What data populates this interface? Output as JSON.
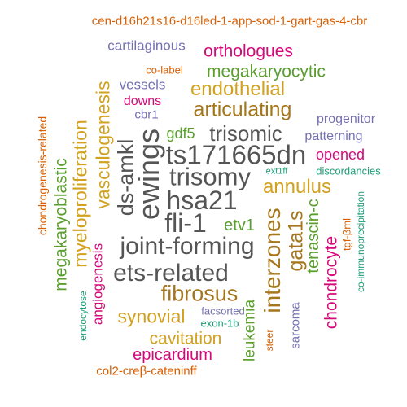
{
  "colors": {
    "background": "#ffffff",
    "gray": "#555555",
    "gold": "#d1a11f",
    "green": "#5a9e2d",
    "magenta": "#d6087a",
    "purple": "#7570b3",
    "orange": "#d95f02",
    "brown": "#a6761d",
    "teal": "#1b9e77"
  },
  "words": [
    {
      "text": "cen-d16h21s16-d16led-1-app-sod-1-gart-gas-4-cbr",
      "color": "#d95f02"
    },
    {
      "text": "cartilaginous",
      "color": "#7570b3"
    },
    {
      "text": "orthologues",
      "color": "#d6087a"
    },
    {
      "text": "co-label",
      "color": "#d95f02"
    },
    {
      "text": "megakaryocytic",
      "color": "#5a9e2d"
    },
    {
      "text": "vessels",
      "color": "#7570b3"
    },
    {
      "text": "endothelial",
      "color": "#d1a11f"
    },
    {
      "text": "downs",
      "color": "#d6087a"
    },
    {
      "text": "articulating",
      "color": "#a6761d"
    },
    {
      "text": "cbr1",
      "color": "#7570b3"
    },
    {
      "text": "progenitor",
      "color": "#7570b3"
    },
    {
      "text": "gdf5",
      "color": "#5a9e2d"
    },
    {
      "text": "trisomic",
      "color": "#555555"
    },
    {
      "text": "patterning",
      "color": "#7570b3"
    },
    {
      "text": "ts171665dn",
      "color": "#555555"
    },
    {
      "text": "opened",
      "color": "#d6087a"
    },
    {
      "text": "ext1ff",
      "color": "#1b9e77"
    },
    {
      "text": "discordancies",
      "color": "#1b9e77"
    },
    {
      "text": "trisomy",
      "color": "#555555"
    },
    {
      "text": "annulus",
      "color": "#d1a11f"
    },
    {
      "text": "hsa21",
      "color": "#555555"
    },
    {
      "text": "fli-1",
      "color": "#555555"
    },
    {
      "text": "etv1",
      "color": "#5a9e2d"
    },
    {
      "text": "joint-forming",
      "color": "#555555"
    },
    {
      "text": "ets-related",
      "color": "#555555"
    },
    {
      "text": "fibrosus",
      "color": "#a6761d"
    },
    {
      "text": "synovial",
      "color": "#d1a11f"
    },
    {
      "text": "facsorted",
      "color": "#7570b3"
    },
    {
      "text": "exon-1b",
      "color": "#1b9e77"
    },
    {
      "text": "cavitation",
      "color": "#d1a11f"
    },
    {
      "text": "epicardium",
      "color": "#d6087a"
    },
    {
      "text": "col2-creβ-cateninff",
      "color": "#d95f02"
    },
    {
      "text": "chondrogenesis-related",
      "color": "#d95f02"
    },
    {
      "text": "megakaryoblastic",
      "color": "#5a9e2d"
    },
    {
      "text": "myeloproliferation",
      "color": "#d1a11f"
    },
    {
      "text": "vasculogenesis",
      "color": "#d1a11f"
    },
    {
      "text": "ds-amkl",
      "color": "#555555"
    },
    {
      "text": "ewings",
      "color": "#555555"
    },
    {
      "text": "angiogenesis",
      "color": "#d6087a"
    },
    {
      "text": "endocytose",
      "color": "#1b9e77"
    },
    {
      "text": "interzones",
      "color": "#a6761d"
    },
    {
      "text": "gata1s",
      "color": "#a6761d"
    },
    {
      "text": "leukemia",
      "color": "#5a9e2d"
    },
    {
      "text": "tenascin-c",
      "color": "#5a9e2d"
    },
    {
      "text": "steer",
      "color": "#d95f02"
    },
    {
      "text": "sarcoma",
      "color": "#7570b3"
    },
    {
      "text": "chondrocyte",
      "color": "#d6087a"
    },
    {
      "text": "tgf-βml",
      "color": "#d95f02"
    },
    {
      "text": "co-immunoprecipitation",
      "color": "#1b9e77"
    }
  ]
}
